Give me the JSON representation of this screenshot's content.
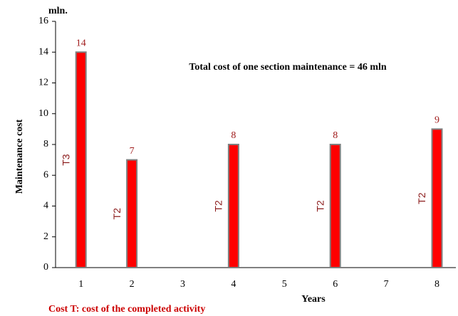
{
  "chart_data": {
    "type": "bar",
    "title": "Total cost of one section maintenance = 46 mln",
    "y_unit": "mln.",
    "y_label": "Maintenance cost",
    "x_label": "Years",
    "footnote": "Cost T: cost of the completed activity",
    "categories": [
      "1",
      "2",
      "3",
      "4",
      "5",
      "6",
      "7",
      "8"
    ],
    "values": [
      14,
      7,
      null,
      8,
      null,
      8,
      null,
      9
    ],
    "bar_annotations": [
      "T3",
      "T2",
      null,
      "T2",
      null,
      "T2",
      null,
      "T2"
    ],
    "color": "#ff0000",
    "edge_color": "#808080",
    "ylim": [
      0,
      16
    ],
    "yticks": [
      0,
      2,
      4,
      6,
      8,
      10,
      12,
      14,
      16
    ],
    "grid": false
  }
}
